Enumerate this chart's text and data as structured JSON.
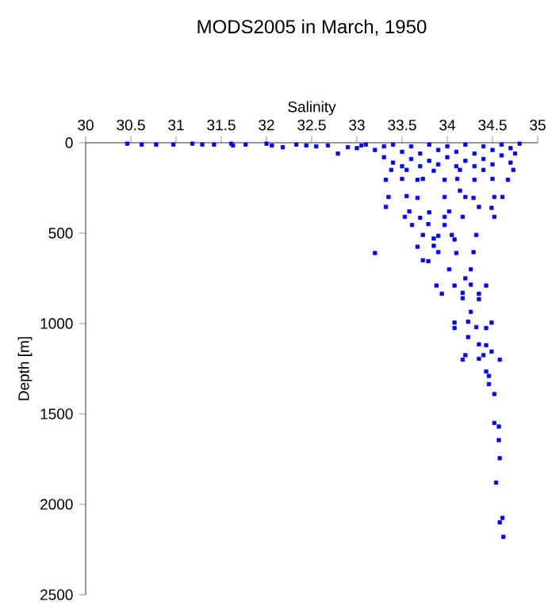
{
  "chart_data": {
    "type": "scatter",
    "title": "MODS2005 in March, 1950",
    "xlabel": "Salinity",
    "ylabel": "Depth [m]",
    "xlim": [
      30,
      35
    ],
    "xticks": [
      30,
      30.5,
      31,
      31.5,
      32,
      32.5,
      33,
      33.5,
      34,
      34.5,
      35
    ],
    "ylim": [
      2500,
      0
    ],
    "yticks": [
      0,
      500,
      1000,
      1500,
      2000,
      2500
    ],
    "marker": "square",
    "grid": false,
    "series": [
      {
        "color": "#0000ff",
        "x": [
          30.46,
          30.62,
          30.78,
          30.97,
          31.18,
          31.29,
          31.42,
          31.61,
          31.63,
          31.77,
          32.0,
          32.06,
          32.18,
          32.33,
          32.44,
          32.55,
          32.68,
          32.79,
          32.9,
          33.0,
          33.05,
          33.1,
          33.2,
          33.3,
          33.3,
          33.4,
          33.4,
          33.5,
          33.5,
          33.6,
          33.6,
          33.7,
          33.7,
          33.8,
          33.8,
          33.9,
          33.9,
          34.0,
          34.0,
          34.1,
          34.1,
          34.2,
          34.2,
          34.3,
          34.3,
          34.4,
          34.4,
          34.5,
          34.5,
          34.6,
          34.6,
          34.7,
          34.7,
          34.8,
          34.75,
          33.38,
          33.55,
          33.85,
          34.14,
          34.4,
          34.73,
          33.32,
          33.5,
          33.67,
          33.73,
          33.97,
          34.11,
          34.3,
          34.5,
          34.67,
          34.14,
          33.35,
          33.55,
          33.67,
          33.97,
          34.2,
          34.29,
          34.52,
          34.61,
          33.32,
          34.35,
          34.49,
          33.58,
          33.8,
          34.02,
          33.53,
          33.7,
          33.97,
          34.17,
          34.52,
          33.61,
          33.79,
          33.97,
          33.73,
          33.9,
          34.05,
          34.32,
          33.85,
          34.08,
          33.67,
          33.85,
          33.2,
          33.9,
          34.1,
          34.29,
          33.73,
          33.79,
          34.02,
          34.26,
          34.2,
          33.88,
          34.08,
          34.26,
          34.43,
          33.94,
          34.17,
          34.35,
          34.17,
          34.35,
          34.26,
          34.08,
          34.23,
          34.49,
          34.08,
          34.32,
          34.43,
          34.23,
          34.35,
          34.43,
          34.49,
          34.2,
          34.4,
          34.17,
          34.35,
          34.58,
          34.43,
          34.46,
          34.46,
          34.52,
          34.52,
          34.57,
          34.57,
          34.58,
          34.54,
          34.61,
          34.58,
          34.62
        ],
        "values": [
          5,
          10,
          10,
          10,
          5,
          10,
          10,
          5,
          15,
          10,
          5,
          15,
          25,
          10,
          15,
          20,
          15,
          60,
          25,
          30,
          15,
          10,
          40,
          20,
          80,
          10,
          110,
          50,
          130,
          20,
          90,
          60,
          130,
          10,
          100,
          40,
          120,
          20,
          80,
          130,
          50,
          10,
          100,
          60,
          130,
          20,
          90,
          40,
          120,
          10,
          70,
          30,
          110,
          5,
          60,
          150,
          150,
          155,
          150,
          150,
          150,
          205,
          200,
          205,
          200,
          205,
          200,
          205,
          200,
          205,
          265,
          300,
          295,
          305,
          300,
          300,
          305,
          300,
          300,
          355,
          355,
          360,
          380,
          385,
          380,
          410,
          415,
          410,
          410,
          410,
          455,
          450,
          455,
          510,
          515,
          510,
          510,
          530,
          535,
          575,
          570,
          610,
          605,
          610,
          605,
          650,
          655,
          700,
          700,
          750,
          790,
          790,
          785,
          790,
          835,
          830,
          835,
          860,
          865,
          935,
          995,
          990,
          995,
          1025,
          1020,
          1025,
          1075,
          1115,
          1120,
          1155,
          1175,
          1175,
          1200,
          1195,
          1200,
          1265,
          1290,
          1335,
          1390,
          1550,
          1570,
          1645,
          1745,
          1880,
          2075,
          2100,
          2180
        ]
      }
    ]
  }
}
